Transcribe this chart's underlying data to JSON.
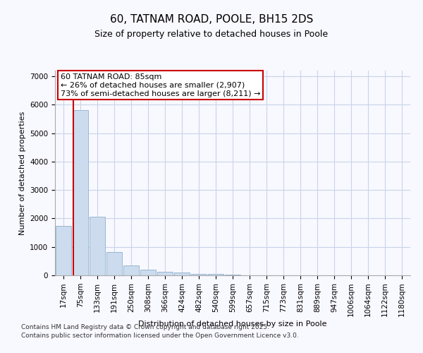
{
  "title": "60, TATNAM ROAD, POOLE, BH15 2DS",
  "subtitle": "Size of property relative to detached houses in Poole",
  "xlabel": "Distribution of detached houses by size in Poole",
  "ylabel": "Number of detached properties",
  "categories": [
    "17sqm",
    "75sqm",
    "133sqm",
    "191sqm",
    "250sqm",
    "308sqm",
    "366sqm",
    "424sqm",
    "482sqm",
    "540sqm",
    "599sqm",
    "657sqm",
    "715sqm",
    "773sqm",
    "831sqm",
    "889sqm",
    "947sqm",
    "1006sqm",
    "1064sqm",
    "1122sqm",
    "1180sqm"
  ],
  "values": [
    1750,
    5820,
    2070,
    830,
    360,
    210,
    120,
    90,
    60,
    40,
    20,
    10,
    8,
    0,
    0,
    0,
    0,
    0,
    0,
    0,
    0
  ],
  "bar_color": "#ccdcee",
  "bar_edge_color": "#8ab0cc",
  "grid_color": "#c8d4e8",
  "background_color": "#f8f8ff",
  "plot_bg_color": "#f8f8ff",
  "red_line_color": "#cc0000",
  "red_line_x": 0.575,
  "property_label": "60 TATNAM ROAD: 85sqm",
  "annotation_line1": "← 26% of detached houses are smaller (2,907)",
  "annotation_line2": "73% of semi-detached houses are larger (8,211) →",
  "annotation_box_facecolor": "#ffffff",
  "annotation_box_edgecolor": "#cc0000",
  "ylim": [
    0,
    7200
  ],
  "yticks": [
    0,
    1000,
    2000,
    3000,
    4000,
    5000,
    6000,
    7000
  ],
  "title_fontsize": 11,
  "subtitle_fontsize": 9,
  "axis_label_fontsize": 8,
  "tick_fontsize": 7.5,
  "annotation_fontsize": 8,
  "footer_line1": "Contains HM Land Registry data © Crown copyright and database right 2025.",
  "footer_line2": "Contains public sector information licensed under the Open Government Licence v3.0."
}
